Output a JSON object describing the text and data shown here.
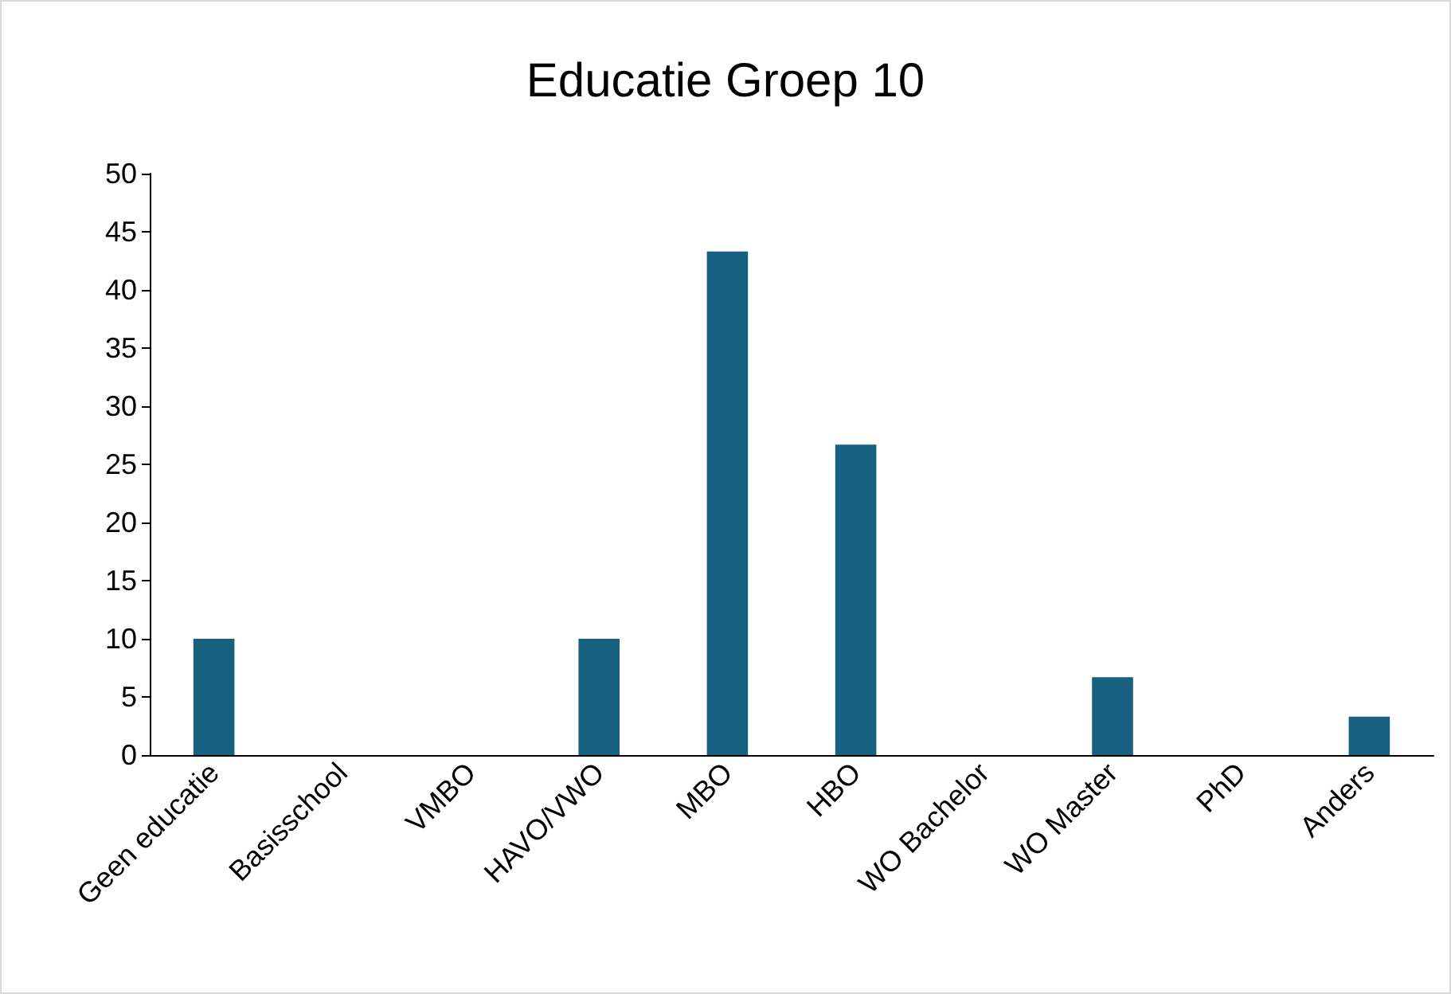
{
  "chart_data": {
    "type": "bar",
    "title": "Educatie Groep 10",
    "categories": [
      "Geen educatie",
      "Basisschool",
      "VMBO",
      "HAVO/VWO",
      "MBO",
      "HBO",
      "WO Bachelor",
      "WO Master",
      "PhD",
      "Anders"
    ],
    "values": [
      10,
      0,
      0,
      10,
      43.3,
      26.7,
      0,
      6.7,
      0,
      3.3
    ],
    "color": "#17607f",
    "ylim": [
      0,
      50
    ],
    "yticks": [
      0,
      5,
      10,
      15,
      20,
      25,
      30,
      35,
      40,
      45,
      50
    ],
    "grid": false
  }
}
